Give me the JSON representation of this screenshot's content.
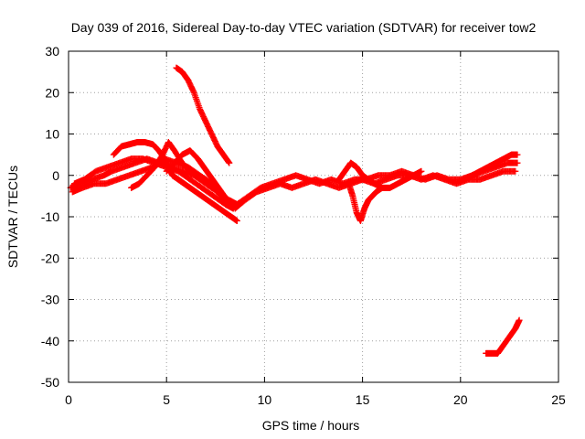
{
  "chart_data": {
    "type": "scatter",
    "title": "Day 039 of 2016, Sidereal Day-to-day VTEC variation (SDTVAR) for receiver tow2",
    "xlabel": "GPS time / hours",
    "ylabel": "SDTVAR / TECUs",
    "xlim": [
      0,
      25
    ],
    "ylim": [
      -50,
      30
    ],
    "xticks": [
      "0",
      "5",
      "10",
      "15",
      "20",
      "25"
    ],
    "yticks": [
      "30",
      "20",
      "10",
      "0",
      "-10",
      "-20",
      "-30",
      "-40",
      "-50"
    ],
    "grid": true,
    "marker": "+",
    "color": "#ff0000",
    "series": [
      {
        "name": "track-1",
        "x": [
          0.1,
          0.6,
          1.2,
          1.8,
          2.2,
          2.8,
          3.4,
          4.0,
          4.6,
          5.2,
          5.8,
          6.4,
          7.0,
          7.6,
          8.2,
          8.6,
          9.2,
          9.8,
          10.4,
          11.0,
          11.6,
          12.2,
          12.8,
          13.4,
          14.0,
          14.6,
          15.2,
          15.8,
          16.4,
          17.0,
          17.6,
          18.2,
          18.8,
          19.4,
          20.0,
          20.6,
          21.2,
          21.8,
          22.4,
          22.9
        ],
        "y": [
          -3,
          -2,
          -1,
          0,
          1,
          2,
          3,
          4,
          3,
          2,
          1,
          0,
          -2,
          -4,
          -6,
          -7,
          -5,
          -3,
          -2,
          -1,
          0,
          -1,
          -2,
          -1,
          -2,
          -1,
          -1,
          0,
          0,
          1,
          0,
          -1,
          0,
          -1,
          -1,
          0,
          1,
          2,
          3,
          3
        ]
      },
      {
        "name": "track-2",
        "x": [
          0.2,
          0.7,
          1.3,
          1.9,
          2.5,
          3.1,
          3.7,
          4.3,
          4.9,
          5.5,
          6.1,
          6.7,
          7.3,
          7.9,
          8.5,
          9.0,
          9.6,
          10.2,
          10.8,
          11.4,
          12.0,
          12.6,
          13.2,
          13.8,
          14.4,
          15.0,
          15.6,
          16.2,
          16.8,
          17.4,
          18.0,
          18.6,
          19.2,
          19.8,
          20.4,
          21.0,
          21.6,
          22.2,
          22.8
        ],
        "y": [
          -4,
          -3,
          -2,
          -2,
          -1,
          0,
          1,
          2,
          4,
          3,
          2,
          0,
          -2,
          -5,
          -8,
          -6,
          -4,
          -3,
          -2,
          -3,
          -2,
          -1,
          -2,
          -3,
          -2,
          -1,
          -2,
          -1,
          0,
          0,
          -1,
          0,
          -1,
          -2,
          -1,
          -1,
          0,
          1,
          1
        ]
      },
      {
        "name": "track-3",
        "x": [
          0.3,
          0.8,
          1.4,
          2.0,
          2.6,
          3.2,
          3.8,
          4.4,
          5.0,
          5.6,
          6.2,
          6.8,
          7.4,
          8.0,
          8.4
        ],
        "y": [
          -2,
          -1,
          1,
          2,
          3,
          4,
          4,
          3,
          2,
          1,
          -1,
          -3,
          -5,
          -7,
          -8
        ]
      },
      {
        "name": "track-4",
        "x": [
          2.3,
          2.7,
          3.1,
          3.5,
          3.9,
          4.3,
          4.6,
          4.9,
          5.1,
          5.3,
          5.6,
          5.9,
          6.2,
          6.5,
          6.8,
          7.1,
          7.4,
          7.7,
          8.0,
          8.3,
          8.6
        ],
        "y": [
          5,
          7,
          7.5,
          8,
          8,
          7.5,
          6,
          4,
          2,
          0,
          -1,
          -2,
          -3,
          -4,
          -5,
          -6,
          -7,
          -8,
          -9,
          -10,
          -11
        ]
      },
      {
        "name": "track-5",
        "x": [
          3.2,
          3.6,
          4.0,
          4.4,
          4.8,
          5.1,
          5.4,
          5.8,
          6.2,
          6.6,
          7.0,
          7.4,
          7.8,
          8.2
        ],
        "y": [
          -3,
          -2,
          0,
          2,
          5,
          8,
          6,
          3,
          1,
          0,
          -1,
          -3,
          -5,
          -7
        ]
      },
      {
        "name": "track-6",
        "x": [
          5.0,
          5.4,
          5.8,
          6.2,
          6.6,
          6.9,
          7.2,
          7.5,
          7.8,
          8.1,
          8.4
        ],
        "y": [
          1,
          3,
          5,
          6,
          4,
          2,
          0,
          -2,
          -4,
          -6,
          -8
        ]
      },
      {
        "name": "track-7",
        "x": [
          5.5,
          5.8,
          6.1,
          6.4,
          6.7,
          7.0,
          7.3,
          7.6,
          7.9,
          8.2
        ],
        "y": [
          26,
          25,
          23,
          20,
          16,
          13,
          10,
          7,
          5,
          3
        ]
      },
      {
        "name": "track-8",
        "x": [
          14.3,
          14.5,
          14.7,
          14.9,
          15.1,
          15.3,
          15.5,
          15.7,
          16.0
        ],
        "y": [
          -2,
          -5,
          -9,
          -11,
          -8,
          -6,
          -5,
          -4,
          -3
        ]
      },
      {
        "name": "track-9",
        "x": [
          13.8,
          14.1,
          14.4,
          14.7,
          15.0,
          15.3,
          15.6,
          16.0,
          16.4,
          16.8,
          17.2,
          17.6,
          18.0
        ],
        "y": [
          -1,
          1,
          3,
          2,
          0,
          -1,
          -2,
          -3,
          -3,
          -2,
          -1,
          0,
          1
        ]
      },
      {
        "name": "track-10",
        "x": [
          20.2,
          20.6,
          21.0,
          21.4,
          21.8,
          22.2,
          22.6,
          22.9
        ],
        "y": [
          -1,
          0,
          1,
          2,
          3,
          4,
          5,
          5
        ]
      },
      {
        "name": "track-11",
        "x": [
          21.3,
          21.6,
          21.9,
          22.2,
          22.5,
          22.8,
          23.0
        ],
        "y": [
          -43,
          -43,
          -43,
          -41,
          -39,
          -37,
          -35
        ]
      }
    ]
  }
}
